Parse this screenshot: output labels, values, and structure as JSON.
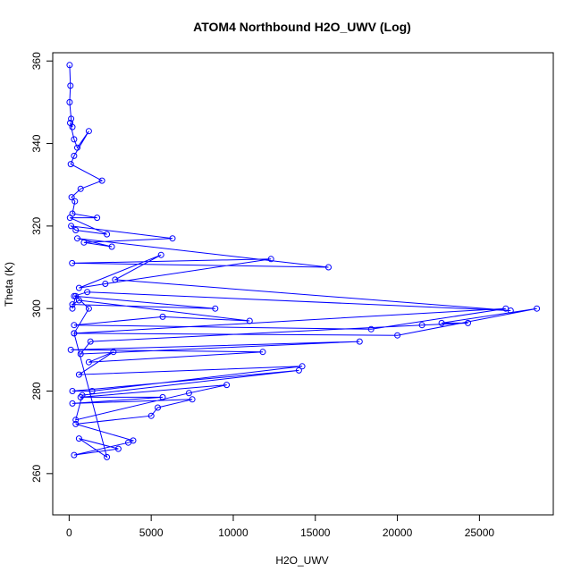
{
  "chart_data": {
    "type": "line",
    "title": "ATOM4 Northbound H2O_UWV (Log)",
    "xlabel": "H2O_UWV",
    "ylabel": "Theta (K)",
    "xlim": [
      -1000,
      29500
    ],
    "ylim": [
      250,
      362
    ],
    "x_ticks": [
      0,
      5000,
      10000,
      15000,
      20000,
      25000
    ],
    "x_tick_labels": [
      "0",
      "5000",
      "10000",
      "15000",
      "20000",
      "25000"
    ],
    "y_ticks": [
      260,
      280,
      300,
      320,
      340,
      360
    ],
    "y_tick_labels": [
      "260",
      "280",
      "300",
      "320",
      "340",
      "360"
    ],
    "grid": false,
    "marker": "open-circle",
    "series_color": "#0000ff",
    "series": [
      {
        "x": [
          30,
          80,
          30,
          120,
          200,
          60,
          300,
          500,
          1200,
          300,
          100,
          2000,
          700,
          150,
          350,
          200,
          1700,
          50,
          2300,
          400,
          120,
          6300,
          900,
          2600,
          500,
          15800,
          180,
          12300,
          2200,
          600,
          5600,
          2800,
          26900,
          1100,
          300,
          8900,
          200,
          600,
          11000,
          5700,
          300,
          18400,
          26600,
          300,
          20000,
          28500,
          22700,
          24300,
          21500,
          1300,
          700,
          17700,
          100,
          11800,
          1200,
          2700,
          600,
          14200,
          1400,
          200,
          14000,
          800,
          400,
          7300,
          9600,
          700,
          5700,
          200,
          7500,
          5400,
          5000,
          400,
          3900,
          3600,
          300,
          3000,
          600,
          2300,
          300,
          1200,
          400,
          200
        ],
        "y": [
          359,
          354,
          350,
          346,
          344,
          345,
          341,
          339,
          343,
          337,
          335,
          331,
          329,
          327,
          326,
          323,
          322,
          322,
          318,
          319,
          320,
          317,
          316,
          315,
          317,
          310,
          311,
          312,
          306,
          305,
          313,
          307,
          299.5,
          304,
          303,
          300,
          301,
          302,
          297,
          298,
          296,
          295,
          300,
          294,
          293.5,
          300,
          296.5,
          296.5,
          296,
          292,
          289,
          292,
          290,
          289.5,
          287,
          289.5,
          284,
          286,
          280,
          280,
          285,
          279,
          273,
          279.5,
          281.5,
          278.5,
          278.5,
          277,
          278,
          276,
          274,
          272,
          268,
          267.5,
          264.5,
          266,
          268.5,
          264,
          294,
          300,
          303,
          300
        ]
      }
    ]
  }
}
